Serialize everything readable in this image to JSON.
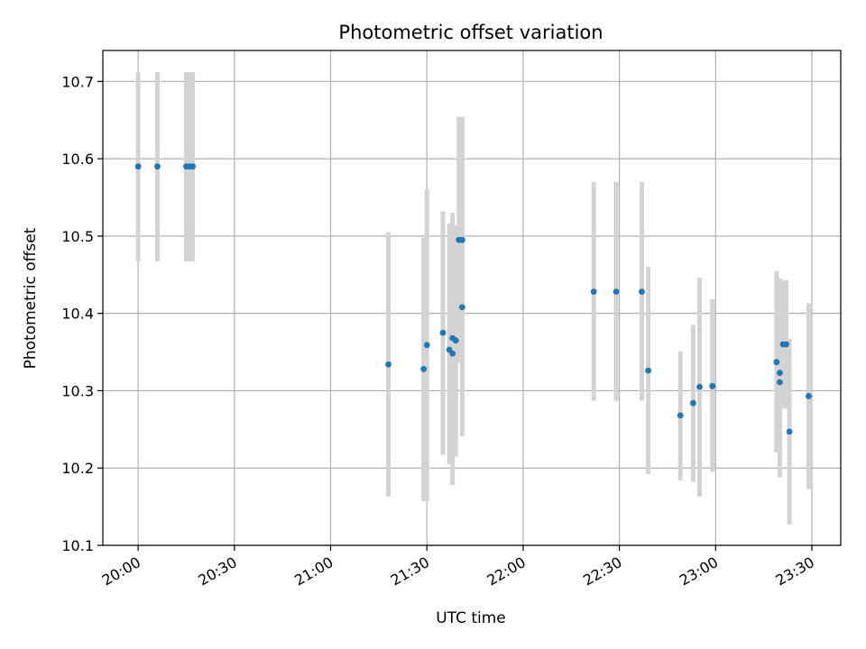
{
  "chart_data": {
    "type": "scatter",
    "title": "Photometric offset variation",
    "xlabel": "UTC time",
    "ylabel": "Photometric offset",
    "x_ticks": [
      "20:00",
      "20:30",
      "21:00",
      "21:30",
      "22:00",
      "22:30",
      "23:00",
      "23:30"
    ],
    "y_ticks": [
      "10.1",
      "10.2",
      "10.3",
      "10.4",
      "10.5",
      "10.6",
      "10.7"
    ],
    "xlim": [
      "19:49",
      "23:39"
    ],
    "ylim": [
      10.1,
      10.74
    ],
    "grid": true,
    "colors": {
      "point": "#1f77b4",
      "errorbar": "#d3d3d3",
      "grid": "#b0b0b0"
    },
    "series": [
      {
        "points": [
          {
            "x": "20:00",
            "y": 10.59,
            "ymin": 10.467,
            "ymax": 10.712
          },
          {
            "x": "20:06",
            "y": 10.59,
            "ymin": 10.467,
            "ymax": 10.712
          },
          {
            "x": "20:15",
            "y": 10.59,
            "ymin": 10.467,
            "ymax": 10.712
          },
          {
            "x": "20:16",
            "y": 10.59,
            "ymin": 10.467,
            "ymax": 10.712
          },
          {
            "x": "20:17",
            "y": 10.59,
            "ymin": 10.467,
            "ymax": 10.712
          },
          {
            "x": "21:18",
            "y": 10.334,
            "ymin": 10.163,
            "ymax": 10.505
          },
          {
            "x": "21:29",
            "y": 10.328,
            "ymin": 10.157,
            "ymax": 10.498
          },
          {
            "x": "21:30",
            "y": 10.359,
            "ymin": 10.157,
            "ymax": 10.56
          },
          {
            "x": "21:35",
            "y": 10.375,
            "ymin": 10.217,
            "ymax": 10.532
          },
          {
            "x": "21:37",
            "y": 10.353,
            "ymin": 10.205,
            "ymax": 10.516
          },
          {
            "x": "21:38",
            "y": 10.348,
            "ymin": 10.178,
            "ymax": 10.519
          },
          {
            "x": "21:38",
            "y": 10.368,
            "ymin": 10.206,
            "ymax": 10.53
          },
          {
            "x": "21:39",
            "y": 10.365,
            "ymin": 10.215,
            "ymax": 10.514
          },
          {
            "x": "21:40",
            "y": 10.495,
            "ymin": 10.336,
            "ymax": 10.654
          },
          {
            "x": "21:41",
            "y": 10.495,
            "ymin": 10.336,
            "ymax": 10.654
          },
          {
            "x": "21:41",
            "y": 10.408,
            "ymin": 10.241,
            "ymax": 10.575
          },
          {
            "x": "22:22",
            "y": 10.428,
            "ymin": 10.287,
            "ymax": 10.57
          },
          {
            "x": "22:29",
            "y": 10.428,
            "ymin": 10.287,
            "ymax": 10.57
          },
          {
            "x": "22:37",
            "y": 10.428,
            "ymin": 10.287,
            "ymax": 10.57
          },
          {
            "x": "22:39",
            "y": 10.326,
            "ymin": 10.192,
            "ymax": 10.46
          },
          {
            "x": "22:49",
            "y": 10.268,
            "ymin": 10.184,
            "ymax": 10.351
          },
          {
            "x": "22:53",
            "y": 10.284,
            "ymin": 10.182,
            "ymax": 10.385
          },
          {
            "x": "22:55",
            "y": 10.305,
            "ymin": 10.163,
            "ymax": 10.446
          },
          {
            "x": "22:59",
            "y": 10.306,
            "ymin": 10.195,
            "ymax": 10.418
          },
          {
            "x": "23:19",
            "y": 10.337,
            "ymin": 10.22,
            "ymax": 10.455
          },
          {
            "x": "23:20",
            "y": 10.323,
            "ymin": 10.2,
            "ymax": 10.445
          },
          {
            "x": "23:20",
            "y": 10.311,
            "ymin": 10.188,
            "ymax": 10.434
          },
          {
            "x": "23:21",
            "y": 10.36,
            "ymin": 10.277,
            "ymax": 10.443
          },
          {
            "x": "23:22",
            "y": 10.36,
            "ymin": 10.277,
            "ymax": 10.443
          },
          {
            "x": "23:23",
            "y": 10.247,
            "ymin": 10.127,
            "ymax": 10.367
          },
          {
            "x": "23:29",
            "y": 10.293,
            "ymin": 10.173,
            "ymax": 10.413
          }
        ]
      }
    ]
  }
}
